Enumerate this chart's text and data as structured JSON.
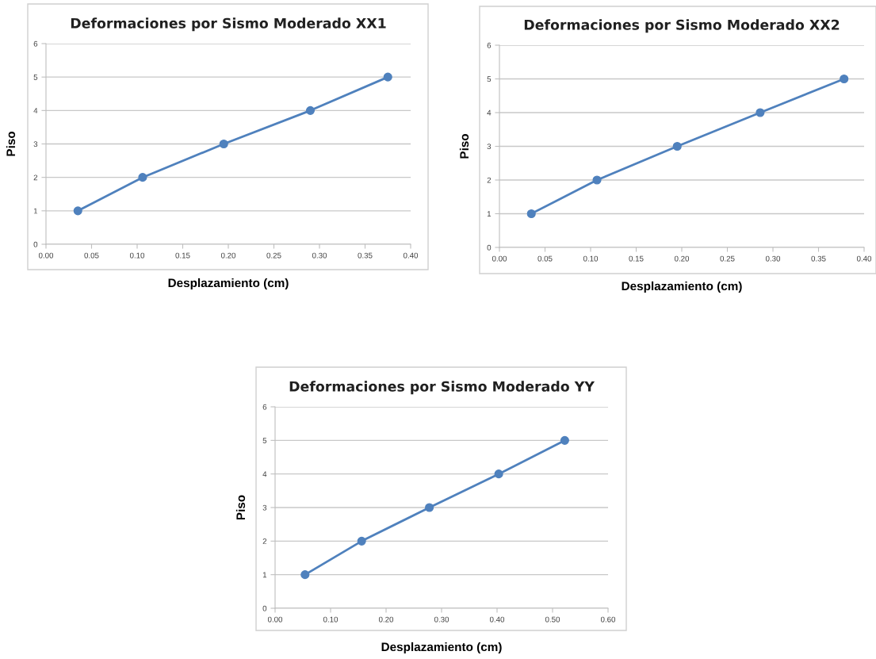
{
  "chart_data": [
    {
      "type": "line",
      "title": "Deformaciones por Sismo Moderado XX1",
      "xlabel": "Desplazamiento (cm)",
      "ylabel": "Piso",
      "x": [
        0.035,
        0.106,
        0.195,
        0.29,
        0.375
      ],
      "values": [
        1,
        2,
        3,
        4,
        5
      ],
      "color": "#4f81bd",
      "marker": "circle",
      "line_style": "solid",
      "xlim": [
        0,
        0.4
      ],
      "xticks": [
        {
          "value": 0,
          "label": "0.00"
        },
        {
          "value": 0.05,
          "label": "0.05"
        },
        {
          "value": 0.1,
          "label": "0.10"
        },
        {
          "value": 0.15,
          "label": "0.15"
        },
        {
          "value": 0.2,
          "label": "0.20"
        },
        {
          "value": 0.25,
          "label": "0.25"
        },
        {
          "value": 0.3,
          "label": "0.30"
        },
        {
          "value": 0.35,
          "label": "0.35"
        },
        {
          "value": 0.4,
          "label": "0.40"
        }
      ],
      "ylim": [
        0,
        6
      ],
      "yticks": [
        0,
        1,
        2,
        3,
        4,
        5,
        6
      ],
      "grid": "y"
    },
    {
      "type": "line",
      "title": "Deformaciones por Sismo Moderado XX2",
      "xlabel": "Desplazamiento (cm)",
      "ylabel": "Piso",
      "x": [
        0.035,
        0.107,
        0.195,
        0.286,
        0.378
      ],
      "values": [
        1,
        2,
        3,
        4,
        5
      ],
      "color": "#4f81bd",
      "marker": "circle",
      "line_style": "solid",
      "xlim": [
        0,
        0.4
      ],
      "xticks": [
        {
          "value": 0,
          "label": "0.00"
        },
        {
          "value": 0.05,
          "label": "0.05"
        },
        {
          "value": 0.1,
          "label": "0.10"
        },
        {
          "value": 0.15,
          "label": "0.15"
        },
        {
          "value": 0.2,
          "label": "0.20"
        },
        {
          "value": 0.25,
          "label": "0.25"
        },
        {
          "value": 0.3,
          "label": "0.30"
        },
        {
          "value": 0.35,
          "label": "0.35"
        },
        {
          "value": 0.4,
          "label": "0.40"
        }
      ],
      "ylim": [
        0,
        6
      ],
      "yticks": [
        0,
        1,
        2,
        3,
        4,
        5,
        6
      ],
      "grid": "y"
    },
    {
      "type": "line",
      "title": "Deformaciones por Sismo Moderado YY",
      "xlabel": "Desplazamiento (cm)",
      "ylabel": "Piso",
      "x": [
        0.054,
        0.156,
        0.278,
        0.403,
        0.522
      ],
      "values": [
        1,
        2,
        3,
        4,
        5
      ],
      "color": "#4f81bd",
      "marker": "circle",
      "line_style": "solid",
      "xlim": [
        0,
        0.6
      ],
      "xticks": [
        {
          "value": 0,
          "label": "0.00"
        },
        {
          "value": 0.1,
          "label": "0.10"
        },
        {
          "value": 0.2,
          "label": "0.20"
        },
        {
          "value": 0.3,
          "label": "0.30"
        },
        {
          "value": 0.4,
          "label": "0.40"
        },
        {
          "value": 0.5,
          "label": "0.50"
        },
        {
          "value": 0.6,
          "label": "0.60"
        }
      ],
      "ylim": [
        0,
        6
      ],
      "yticks": [
        0,
        1,
        2,
        3,
        4,
        5,
        6
      ],
      "grid": "y"
    }
  ]
}
